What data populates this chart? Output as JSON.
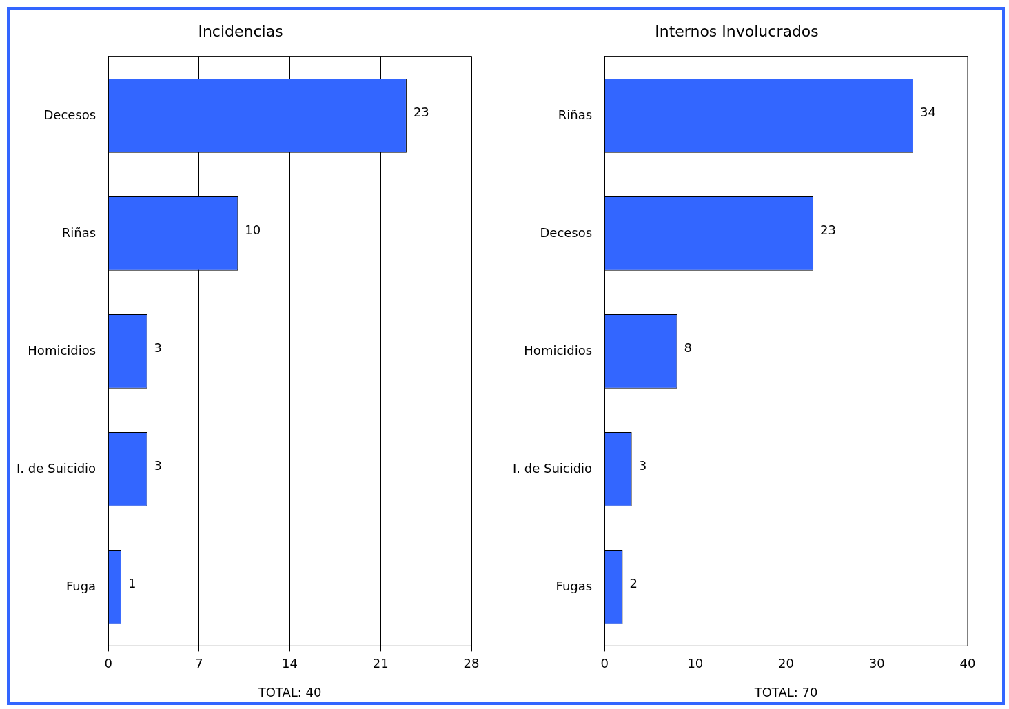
{
  "chart_data": [
    {
      "type": "bar",
      "orientation": "horizontal",
      "title": "Incidencias",
      "categories": [
        "Decesos",
        "Riñas",
        "Homicidios",
        "I. de Suicidio",
        "Fuga"
      ],
      "values": [
        23,
        10,
        3,
        3,
        1
      ],
      "color": "#3366ff",
      "xlim": [
        0,
        28
      ],
      "xticks": [
        0,
        7,
        14,
        21,
        28
      ],
      "grid": "x",
      "data_labels": true,
      "annotations": [
        "TOTAL: 40"
      ]
    },
    {
      "type": "bar",
      "orientation": "horizontal",
      "title": "Internos Involucrados",
      "categories": [
        "Riñas",
        "Decesos",
        "Homicidios",
        "I. de Suicidio",
        "Fugas"
      ],
      "values": [
        34,
        23,
        8,
        3,
        2
      ],
      "color": "#3366ff",
      "xlim": [
        0,
        40
      ],
      "xticks": [
        0,
        10,
        20,
        30,
        40
      ],
      "grid": "x",
      "data_labels": true,
      "annotations": [
        "TOTAL: 70"
      ]
    }
  ]
}
